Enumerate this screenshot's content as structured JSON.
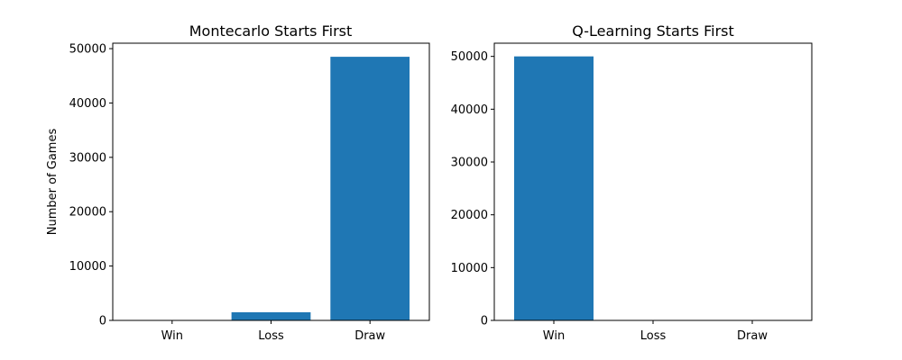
{
  "colors": {
    "bar": "#1f77b4",
    "axis": "#000000",
    "background": "#ffffff"
  },
  "chart_data": [
    {
      "type": "bar",
      "title": "Montecarlo Starts First",
      "xlabel": "",
      "ylabel": "Number of Games",
      "categories": [
        "Win",
        "Loss",
        "Draw"
      ],
      "values": [
        0,
        1500,
        48500
      ],
      "ylim": [
        0,
        51000
      ],
      "yticks": [
        0,
        10000,
        20000,
        30000,
        40000,
        50000
      ],
      "ytick_labels": [
        "0",
        "10000",
        "20000",
        "30000",
        "40000",
        "50000"
      ],
      "grid": false,
      "legend": "none"
    },
    {
      "type": "bar",
      "title": "Q-Learning Starts First",
      "xlabel": "",
      "ylabel": "",
      "categories": [
        "Win",
        "Loss",
        "Draw"
      ],
      "values": [
        50000,
        0,
        0
      ],
      "ylim": [
        0,
        52500
      ],
      "yticks": [
        0,
        10000,
        20000,
        30000,
        40000,
        50000
      ],
      "ytick_labels": [
        "0",
        "10000",
        "20000",
        "30000",
        "40000",
        "50000"
      ],
      "grid": false,
      "legend": "none"
    }
  ]
}
